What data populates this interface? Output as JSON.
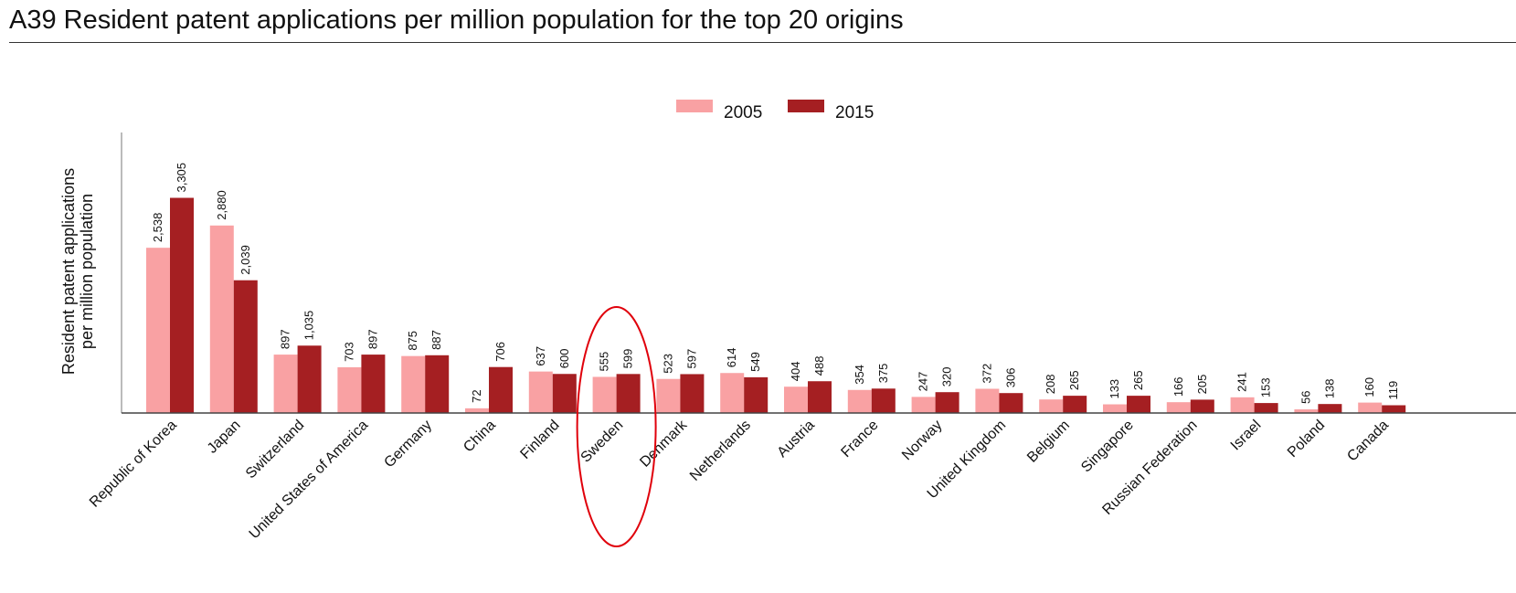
{
  "title": "A39 Resident patent applications per million population for the top 20 origins",
  "colors": {
    "s2005": "#f9a1a3",
    "s2015": "#a51f22",
    "highlight": "#e0000b"
  },
  "chart_data": {
    "type": "bar",
    "title": "A39 Resident patent applications per million population for the top 20 origins",
    "xlabel": "",
    "ylabel": "Resident patent applications per million population",
    "ylabel_lines": [
      "Resident patent applications",
      "per million population"
    ],
    "categories": [
      "Republic of Korea",
      "Japan",
      "Switzerland",
      "United States of America",
      "Germany",
      "China",
      "Finland",
      "Sweden",
      "Denmark",
      "Netherlands",
      "Austria",
      "France",
      "Norway",
      "United Kingdom",
      "Belgium",
      "Singapore",
      "Russian Federation",
      "Israel",
      "Poland",
      "Canada"
    ],
    "series": [
      {
        "name": "2005",
        "values": [
          2538,
          2880,
          897,
          703,
          875,
          72,
          637,
          555,
          523,
          614,
          404,
          354,
          247,
          372,
          208,
          133,
          166,
          241,
          56,
          160
        ],
        "labels": [
          "2,538",
          "2,880",
          "897",
          "703",
          "875",
          "72",
          "637",
          "555",
          "523",
          "614",
          "404",
          "354",
          "247",
          "372",
          "208",
          "133",
          "166",
          "241",
          "56",
          "160"
        ]
      },
      {
        "name": "2015",
        "values": [
          3305,
          2039,
          1035,
          897,
          887,
          706,
          600,
          599,
          597,
          549,
          488,
          375,
          320,
          306,
          265,
          265,
          205,
          153,
          138,
          119
        ],
        "labels": [
          "3,305",
          "2,039",
          "1,035",
          "897",
          "887",
          "706",
          "600",
          "599",
          "597",
          "549",
          "488",
          "375",
          "320",
          "306",
          "265",
          "265",
          "205",
          "153",
          "138",
          "119"
        ]
      }
    ],
    "ylim": [
      0,
      4200
    ],
    "grid": false,
    "legend": "top-center",
    "highlight": "Sweden"
  }
}
